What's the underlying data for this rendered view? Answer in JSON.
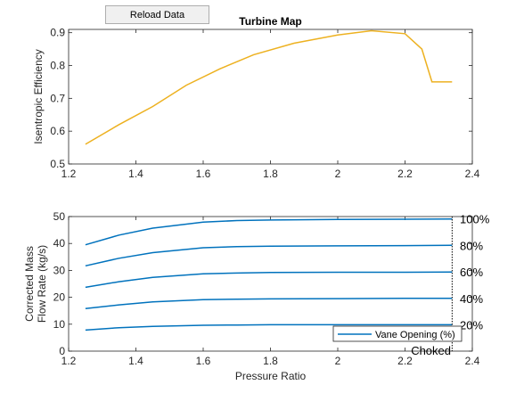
{
  "reload_button": {
    "label": "Reload Data"
  },
  "chart_data": [
    {
      "type": "line",
      "title": "Turbine Map",
      "xlabel": "",
      "ylabel": "Isentropic Efficiency",
      "xlim": [
        1.2,
        2.4
      ],
      "ylim": [
        0.5,
        0.91
      ],
      "xticks": [
        "1.2",
        "1.4",
        "1.6",
        "1.8",
        "2",
        "2.2",
        "2.4"
      ],
      "yticks": [
        "0.5",
        "0.6",
        "0.7",
        "0.8",
        "0.9"
      ],
      "grid": false,
      "series": [
        {
          "color": "#EDB120",
          "x": [
            1.25,
            1.35,
            1.45,
            1.55,
            1.65,
            1.75,
            1.87,
            2.0,
            2.1,
            2.2,
            2.25,
            2.28,
            2.34
          ],
          "y": [
            0.56,
            0.62,
            0.675,
            0.74,
            0.79,
            0.833,
            0.868,
            0.893,
            0.906,
            0.897,
            0.85,
            0.75,
            0.75
          ]
        }
      ]
    },
    {
      "type": "line",
      "xlabel": "Pressure Ratio",
      "ylabel": "Corrected Mass Flow Rate (kg/s)",
      "ylabel_lines": [
        "Corrected Mass",
        "Flow Rate (kg/s)"
      ],
      "xlim": [
        1.2,
        2.4
      ],
      "ylim": [
        0,
        50
      ],
      "xticks": [
        "1.2",
        "1.4",
        "1.6",
        "1.8",
        "2",
        "2.2",
        "2.4"
      ],
      "yticks": [
        "0",
        "10",
        "20",
        "30",
        "40",
        "50"
      ],
      "grid": false,
      "line_color": "#0072BD",
      "x": [
        1.25,
        1.35,
        1.45,
        1.6,
        1.7,
        1.8,
        2.0,
        2.2,
        2.34
      ],
      "series": [
        {
          "label": "20%",
          "values": [
            7.8,
            8.7,
            9.2,
            9.6,
            9.7,
            9.8,
            9.8,
            9.8,
            9.8
          ]
        },
        {
          "label": "40%",
          "values": [
            15.8,
            17.2,
            18.3,
            19.1,
            19.3,
            19.4,
            19.5,
            19.6,
            19.6
          ]
        },
        {
          "label": "60%",
          "values": [
            23.7,
            25.8,
            27.4,
            28.7,
            29.0,
            29.2,
            29.3,
            29.3,
            29.4
          ]
        },
        {
          "label": "80%",
          "values": [
            31.7,
            34.5,
            36.6,
            38.4,
            38.8,
            39.0,
            39.1,
            39.2,
            39.3
          ]
        },
        {
          "label": "100%",
          "values": [
            39.5,
            43.1,
            45.7,
            47.9,
            48.5,
            48.7,
            48.9,
            49.0,
            49.1
          ]
        }
      ],
      "choke_line": {
        "x": 2.34,
        "label": "Choked"
      },
      "legend": {
        "label": "Vane Opening (%)",
        "placement": "bottom-right"
      }
    }
  ]
}
